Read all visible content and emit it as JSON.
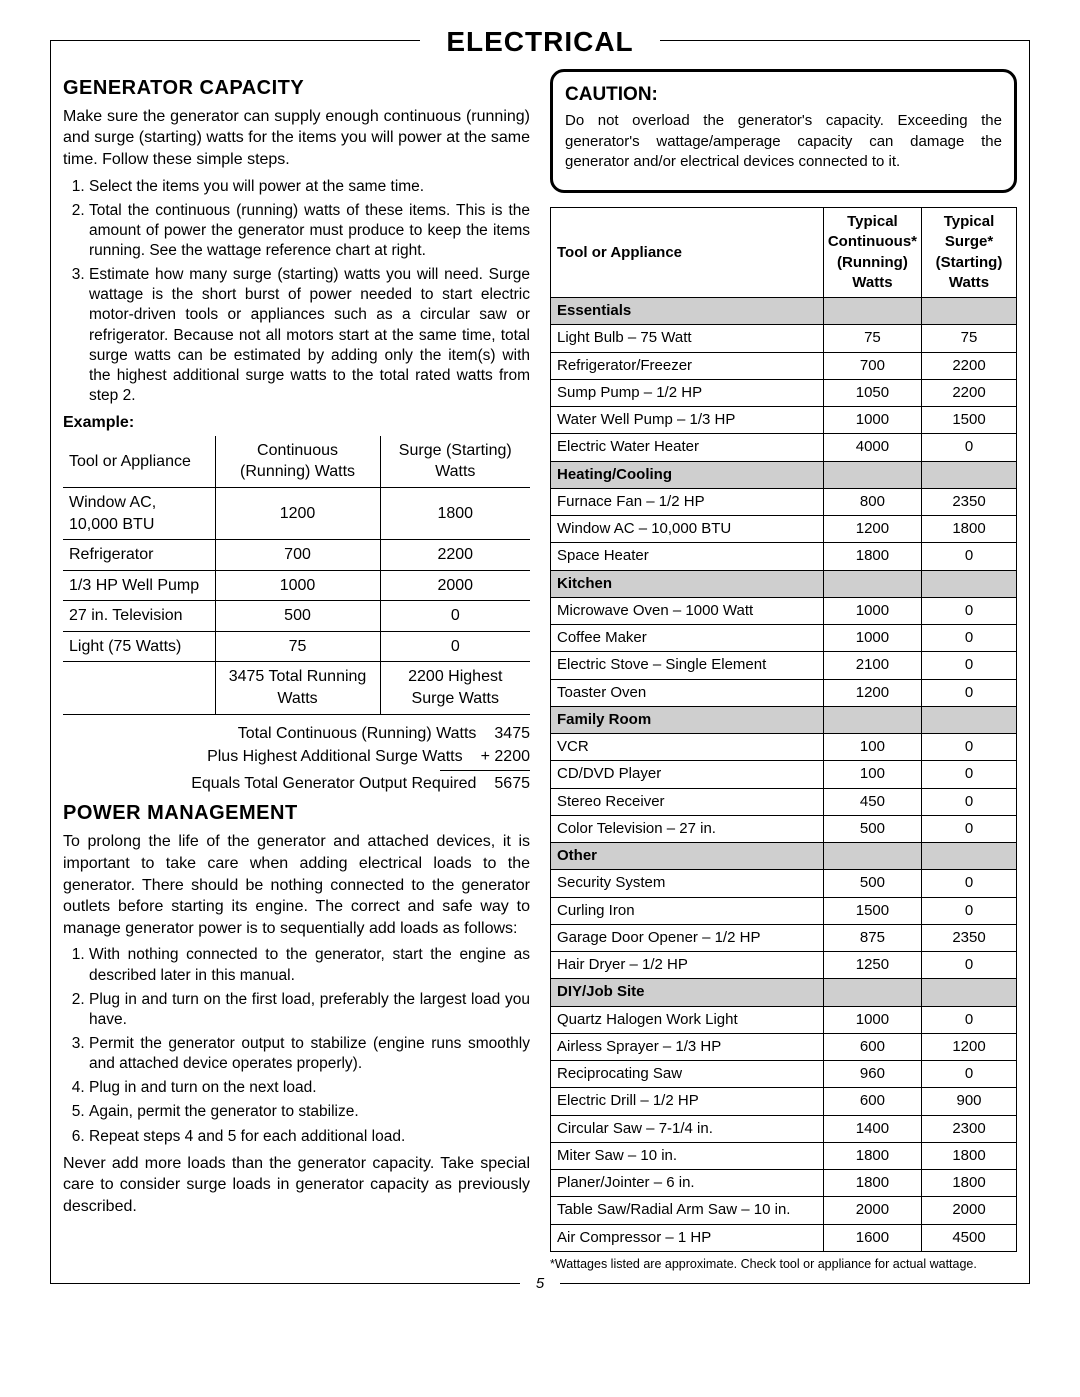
{
  "page_title": "ELECTRICAL",
  "page_number": "5",
  "left": {
    "h_capacity": "GENERATOR CAPACITY",
    "p_capacity": "Make sure the generator can supply enough continuous (running) and surge (starting) watts for the items you will power at the same time. Follow these simple steps.",
    "cap_steps": [
      "Select the items you will power at the same time.",
      "Total the continuous (running) watts of these items. This is the amount of power the generator must produce to keep the items running. See the wattage reference chart at right.",
      "Estimate how many surge (starting) watts you will need. Surge wattage is the short burst of power needed to start electric motor-driven tools or appliances such as a circular saw or refrigerator. Because not all motors start at the same time, total surge watts can be estimated by adding only the item(s) with the highest additional surge watts to the total rated watts from step 2."
    ],
    "example_label": "Example:",
    "ex_head": {
      "tool": "Tool or Appliance",
      "cont": "Continuous (Running) Watts",
      "surge": "Surge (Starting) Watts"
    },
    "ex_rows": [
      {
        "tool": "Window AC, 10,000 BTU",
        "cont": "1200",
        "surge": "1800"
      },
      {
        "tool": "Refrigerator",
        "cont": "700",
        "surge": "2200"
      },
      {
        "tool": "1/3 HP Well Pump",
        "cont": "1000",
        "surge": "2000"
      },
      {
        "tool": "27 in. Television",
        "cont": "500",
        "surge": "0"
      },
      {
        "tool": "Light (75 Watts)",
        "cont": "75",
        "surge": "0"
      }
    ],
    "ex_sum": {
      "cont": "3475 Total Running Watts",
      "surge": "2200 Highest Surge Watts"
    },
    "totals": {
      "l1a": "Total Continuous (Running) Watts",
      "l1b": "3475",
      "l2a": "Plus Highest Additional Surge Watts",
      "l2b": "+ 2200",
      "l3a": "Equals Total Generator Output Required",
      "l3b": "5675"
    },
    "h_power": "POWER MANAGEMENT",
    "p_power": "To prolong the life of the generator and attached devices, it is important to take care when adding electrical loads to the generator. There should be nothing connected to the generator outlets before starting its engine. The correct and safe way to manage generator power is to sequentially add loads as follows:",
    "pm_steps": [
      "With nothing connected to the generator, start the engine as described later in this manual.",
      "Plug in and turn on the first load, preferably the largest load you have.",
      "Permit the generator output to stabilize (engine runs smoothly and attached device operates properly).",
      "Plug in and turn on the next load.",
      "Again, permit the generator to stabilize.",
      "Repeat steps 4 and 5 for each additional load."
    ],
    "p_power2": "Never add more loads than the generator capacity. Take special care to consider surge loads in generator capacity as previously described."
  },
  "right": {
    "caution_h": "CAUTION:",
    "caution_p": "Do not overload the generator's capacity. Exceeding the generator's wattage/amperage capacity can damage the generator and/or electrical devices connected to it.",
    "head": {
      "tool": "Tool or Appliance",
      "cont": "Typical Continuous* (Running) Watts",
      "surge": "Typical Surge* (Starting) Watts"
    },
    "cats": [
      {
        "name": "Essentials",
        "rows": [
          {
            "n": "Light Bulb – 75 Watt",
            "c": "75",
            "s": "75"
          },
          {
            "n": "Refrigerator/Freezer",
            "c": "700",
            "s": "2200"
          },
          {
            "n": "Sump Pump – 1/2 HP",
            "c": "1050",
            "s": "2200"
          },
          {
            "n": "Water Well Pump – 1/3 HP",
            "c": "1000",
            "s": "1500"
          },
          {
            "n": "Electric Water Heater",
            "c": "4000",
            "s": "0"
          }
        ]
      },
      {
        "name": "Heating/Cooling",
        "rows": [
          {
            "n": "Furnace Fan – 1/2 HP",
            "c": "800",
            "s": "2350"
          },
          {
            "n": "Window AC – 10,000 BTU",
            "c": "1200",
            "s": "1800"
          },
          {
            "n": "Space Heater",
            "c": "1800",
            "s": "0"
          }
        ]
      },
      {
        "name": "Kitchen",
        "rows": [
          {
            "n": "Microwave Oven – 1000 Watt",
            "c": "1000",
            "s": "0"
          },
          {
            "n": "Coffee Maker",
            "c": "1000",
            "s": "0"
          },
          {
            "n": "Electric Stove – Single Element",
            "c": "2100",
            "s": "0"
          },
          {
            "n": "Toaster Oven",
            "c": "1200",
            "s": "0"
          }
        ]
      },
      {
        "name": "Family Room",
        "rows": [
          {
            "n": "VCR",
            "c": "100",
            "s": "0"
          },
          {
            "n": "CD/DVD Player",
            "c": "100",
            "s": "0"
          },
          {
            "n": "Stereo Receiver",
            "c": "450",
            "s": "0"
          },
          {
            "n": "Color Television – 27 in.",
            "c": "500",
            "s": "0"
          }
        ]
      },
      {
        "name": "Other",
        "rows": [
          {
            "n": "Security System",
            "c": "500",
            "s": "0"
          },
          {
            "n": "Curling Iron",
            "c": "1500",
            "s": "0"
          },
          {
            "n": "Garage Door Opener – 1/2 HP",
            "c": "875",
            "s": "2350"
          },
          {
            "n": "Hair Dryer – 1/2 HP",
            "c": "1250",
            "s": "0"
          }
        ]
      },
      {
        "name": "DIY/Job Site",
        "rows": [
          {
            "n": "Quartz Halogen Work Light",
            "c": "1000",
            "s": "0"
          },
          {
            "n": "Airless Sprayer – 1/3 HP",
            "c": "600",
            "s": "1200"
          },
          {
            "n": "Reciprocating Saw",
            "c": "960",
            "s": "0"
          },
          {
            "n": "Electric Drill – 1/2 HP",
            "c": "600",
            "s": "900"
          },
          {
            "n": "Circular Saw – 7-1/4 in.",
            "c": "1400",
            "s": "2300"
          },
          {
            "n": "Miter Saw – 10 in.",
            "c": "1800",
            "s": "1800"
          },
          {
            "n": "Planer/Jointer – 6 in.",
            "c": "1800",
            "s": "1800"
          },
          {
            "n": "Table Saw/Radial Arm Saw – 10 in.",
            "c": "2000",
            "s": "2000"
          },
          {
            "n": "Air Compressor – 1 HP",
            "c": "1600",
            "s": "4500"
          }
        ]
      }
    ],
    "footnote": "*Wattages listed are approximate. Check tool or appliance for actual wattage."
  }
}
